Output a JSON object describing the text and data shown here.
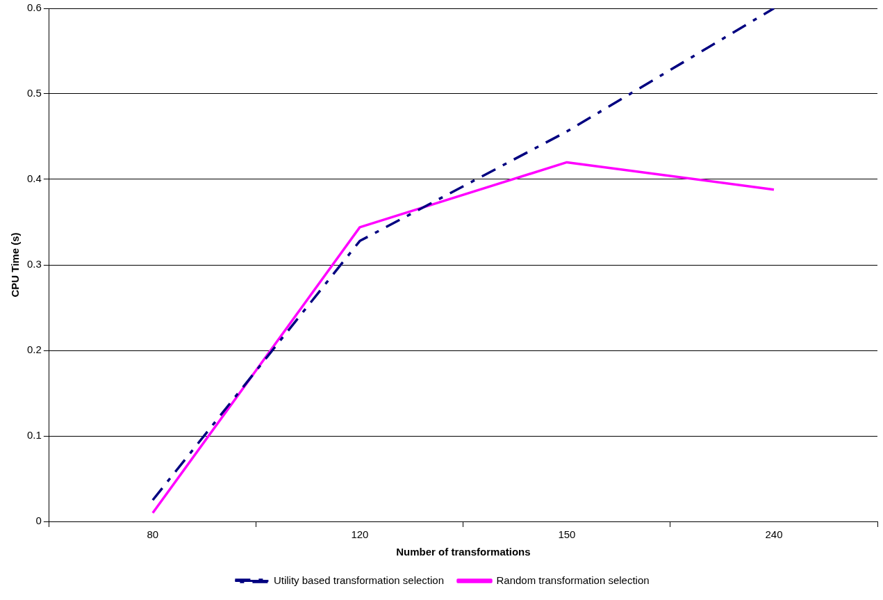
{
  "chart_data": {
    "type": "line",
    "xlabel": "Number of transformations",
    "ylabel": "CPU Time (s)",
    "categories": [
      "80",
      "120",
      "150",
      "240"
    ],
    "series": [
      {
        "name": "Utility based transformation selection",
        "color": "#000080",
        "values": [
          0.025,
          0.328,
          0.456,
          0.6
        ],
        "line_style": "dashed"
      },
      {
        "name": "Random transformation selection",
        "color": "#ff00ff",
        "values": [
          0.01,
          0.344,
          0.42,
          0.388
        ],
        "line_style": "solid"
      }
    ],
    "ylim": [
      0,
      0.6
    ],
    "yticks": [
      0,
      0.1,
      0.2,
      0.3,
      0.4,
      0.5,
      0.6
    ],
    "grid": "y",
    "legend": "bottom",
    "marker": "none"
  }
}
